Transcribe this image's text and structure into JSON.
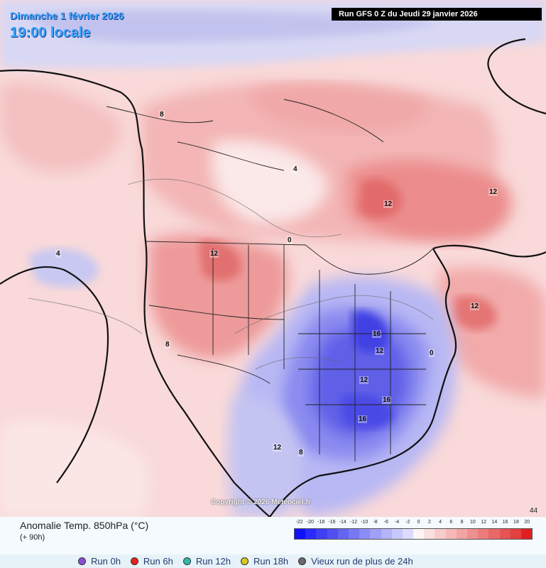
{
  "header": {
    "date_line": "Dimanche 1 février 2026",
    "time_line": "19:00 locale",
    "run_banner": "Run GFS 0 Z du Jeudi 29 janvier 2026"
  },
  "map": {
    "copyright": "Copyright © 2026 Meteociel.fr",
    "corner_number": "44",
    "contour_labels": [
      {
        "text": "12",
        "region": "Hudson Bay"
      },
      {
        "text": "12",
        "region": "Labrador"
      },
      {
        "text": "12",
        "region": "Atlantic off Nova Scotia"
      },
      {
        "text": "12",
        "region": "Idaho / Montana"
      },
      {
        "text": "16",
        "region": "Tennessee / Kentucky"
      },
      {
        "text": "16",
        "region": "Alabama"
      },
      {
        "text": "16",
        "region": "Georgia"
      },
      {
        "text": "12",
        "region": "Virginia"
      },
      {
        "text": "12",
        "region": "North Carolina"
      },
      {
        "text": "12",
        "region": "Mexico / Texas border"
      },
      {
        "text": "8",
        "region": "Yukon"
      },
      {
        "text": "8",
        "region": "Nevada"
      },
      {
        "text": "8",
        "region": "Texas"
      },
      {
        "text": "4",
        "region": "Pacific"
      },
      {
        "text": "4",
        "region": "Nunavut"
      },
      {
        "text": "0",
        "region": "Quebec"
      },
      {
        "text": "0",
        "region": "Atlantic"
      }
    ]
  },
  "legend": {
    "title": "Anomalie Temp. 850hPa (°C)",
    "subtitle": "(+ 90h)",
    "scale_labels": [
      "-22",
      "-20",
      "-18",
      "-16",
      "-14",
      "-12",
      "-10",
      "-8",
      "-6",
      "-4",
      "-2",
      "0",
      "2",
      "4",
      "6",
      "8",
      "10",
      "12",
      "14",
      "16",
      "18",
      "20"
    ],
    "scale_colors": [
      "#1010ff",
      "#2a2aff",
      "#3f3ff5",
      "#5050f0",
      "#6464f2",
      "#7878f4",
      "#8c8cf6",
      "#a0a0f8",
      "#b4b4fa",
      "#c8c8fc",
      "#dcdcfe",
      "#fff5f5",
      "#fbe0e0",
      "#f8cccc",
      "#f5b8b8",
      "#f2a4a4",
      "#ef9090",
      "#ec7c7c",
      "#e96868",
      "#e65454",
      "#e34040",
      "#e02020"
    ]
  },
  "runs": [
    {
      "label": "Run 0h",
      "color": "#8a4fd6"
    },
    {
      "label": "Run 6h",
      "color": "#e82020"
    },
    {
      "label": "Run 12h",
      "color": "#2fb8b0"
    },
    {
      "label": "Run 18h",
      "color": "#d8c81a"
    },
    {
      "label": "Vieux run de plus de 24h",
      "color": "#6a6a6a"
    }
  ]
}
